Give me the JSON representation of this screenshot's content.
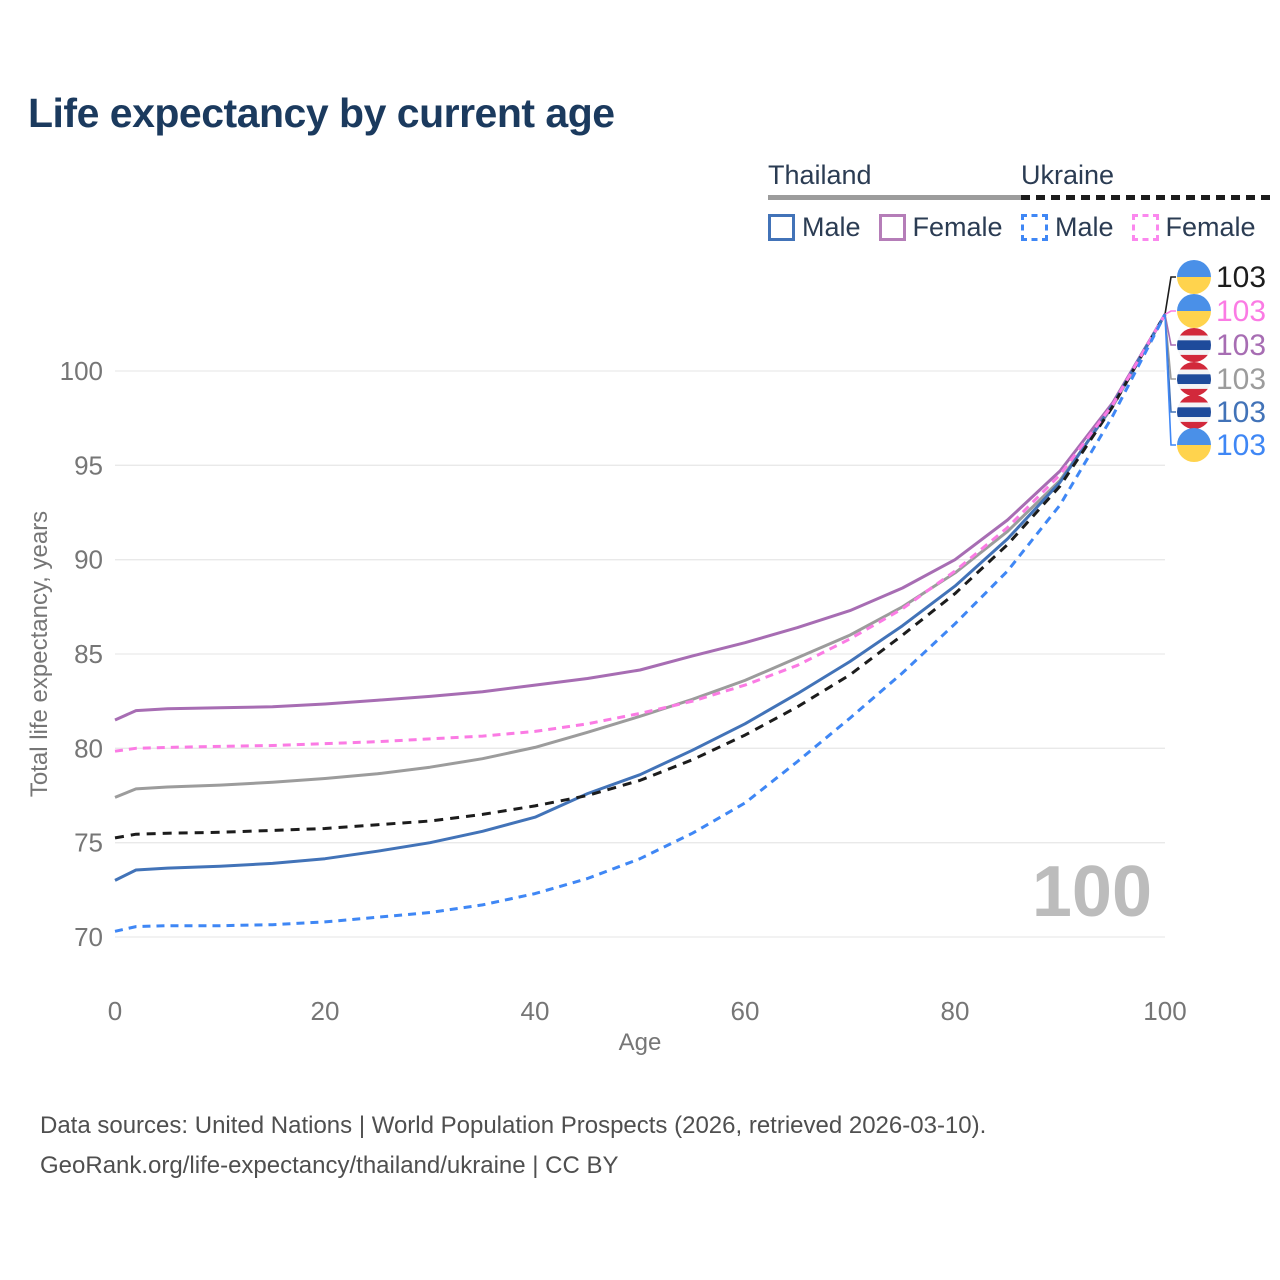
{
  "title": "Life expectancy by current age",
  "watermark_age": "100",
  "legend": {
    "groups": [
      {
        "name": "Thailand",
        "line_style": "solid",
        "underline_color": "#9c9c9c",
        "items": [
          {
            "label": "Male",
            "color": "#4273b8"
          },
          {
            "label": "Female",
            "color": "#b57db8"
          }
        ]
      },
      {
        "name": "Ukraine",
        "line_style": "dashed",
        "underline_color": "#1c1c1c",
        "items": [
          {
            "label": "Male",
            "color": "#3f87f5"
          },
          {
            "label": "Female",
            "color": "#fb87ee"
          }
        ]
      }
    ]
  },
  "footer": {
    "line1": "Data sources: United Nations | World Population Prospects (2026, retrieved 2026-03-10).",
    "line2": "GeoRank.org/life-expectancy/thailand/ukraine | CC BY"
  },
  "chart_data": {
    "type": "line",
    "title": "Life expectancy by current age",
    "xlabel": "Age",
    "ylabel": "Total life expectancy, years",
    "x_ticks": [
      0,
      20,
      40,
      60,
      80,
      100
    ],
    "y_ticks": [
      70,
      75,
      80,
      85,
      90,
      95,
      100
    ],
    "xlim": [
      0,
      100
    ],
    "ylim": [
      69,
      104
    ],
    "grid": "horizontal",
    "legend_position": "top-right",
    "x": [
      0,
      2,
      5,
      10,
      15,
      20,
      25,
      30,
      35,
      40,
      45,
      50,
      55,
      60,
      65,
      70,
      75,
      80,
      85,
      90,
      95,
      100
    ],
    "series": [
      {
        "name": "Ukraine Both sexes",
        "country": "Ukraine",
        "sex": "both",
        "color": "#1c1c1c",
        "dash": "dashed",
        "flag": "ukraine",
        "end_label": "103",
        "values": [
          75.25,
          75.45,
          75.5,
          75.55,
          75.65,
          75.75,
          75.95,
          76.15,
          76.5,
          76.95,
          77.5,
          78.3,
          79.4,
          80.7,
          82.2,
          83.9,
          86.0,
          88.2,
          90.8,
          93.9,
          98.1,
          103
        ]
      },
      {
        "name": "Ukraine Female",
        "country": "Ukraine",
        "sex": "female",
        "color": "#fb7be4",
        "dash": "dashed",
        "flag": "ukraine",
        "end_label": "103",
        "values": [
          79.85,
          80.0,
          80.05,
          80.1,
          80.15,
          80.25,
          80.35,
          80.5,
          80.65,
          80.9,
          81.3,
          81.85,
          82.5,
          83.35,
          84.4,
          85.8,
          87.4,
          89.4,
          91.7,
          94.5,
          98.2,
          103
        ]
      },
      {
        "name": "Thailand Female",
        "country": "Thailand",
        "sex": "female",
        "color": "#a76db3",
        "dash": "solid",
        "flag": "thailand",
        "end_label": "103",
        "values": [
          81.5,
          82.0,
          82.1,
          82.15,
          82.2,
          82.35,
          82.55,
          82.75,
          83.0,
          83.35,
          83.7,
          84.15,
          84.9,
          85.6,
          86.4,
          87.3,
          88.5,
          90.0,
          92.1,
          94.7,
          98.3,
          103
        ]
      },
      {
        "name": "Thailand Both sexes",
        "country": "Thailand",
        "sex": "both",
        "color": "#9c9c9c",
        "dash": "solid",
        "flag": "thailand",
        "end_label": "103",
        "values": [
          77.4,
          77.85,
          77.95,
          78.05,
          78.2,
          78.4,
          78.65,
          79.0,
          79.45,
          80.05,
          80.85,
          81.7,
          82.6,
          83.6,
          84.8,
          86.0,
          87.5,
          89.3,
          91.5,
          94.2,
          98.1,
          103
        ]
      },
      {
        "name": "Thailand Male",
        "country": "Thailand",
        "sex": "male",
        "color": "#4273b8",
        "dash": "solid",
        "flag": "thailand",
        "end_label": "103",
        "values": [
          73.0,
          73.55,
          73.65,
          73.75,
          73.9,
          74.15,
          74.55,
          75.0,
          75.6,
          76.35,
          77.6,
          78.6,
          79.9,
          81.3,
          82.9,
          84.6,
          86.5,
          88.6,
          91.1,
          94.1,
          98.2,
          103
        ]
      },
      {
        "name": "Ukraine Male",
        "country": "Ukraine",
        "sex": "male",
        "color": "#3f87f5",
        "dash": "dashed",
        "flag": "ukraine",
        "end_label": "103",
        "values": [
          70.3,
          70.55,
          70.6,
          70.6,
          70.65,
          70.8,
          71.05,
          71.3,
          71.7,
          72.3,
          73.1,
          74.15,
          75.5,
          77.1,
          79.3,
          81.6,
          84.0,
          86.6,
          89.4,
          92.9,
          97.6,
          103
        ]
      }
    ],
    "flag_colors": {
      "ukraine": [
        "#4a90e8",
        "#ffd34d"
      ],
      "thailand": [
        "#d2293b",
        "#f3f4f6",
        "#1e4b9b"
      ]
    }
  }
}
